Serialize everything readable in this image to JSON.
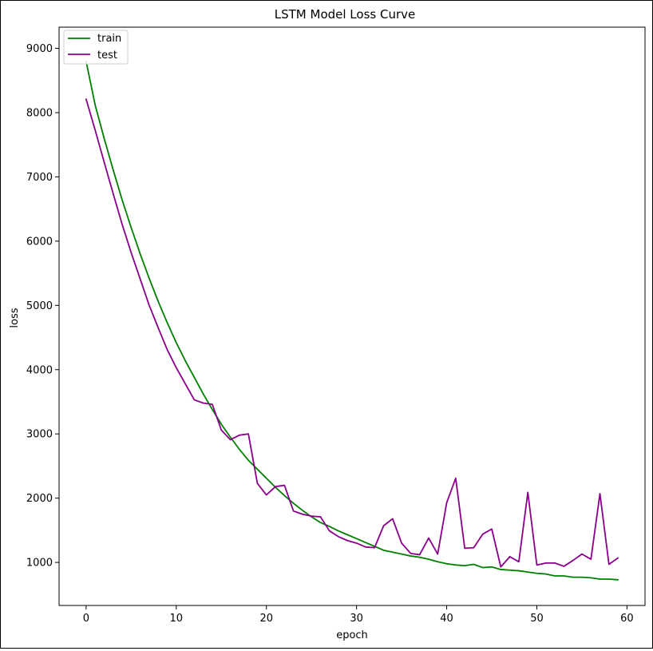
{
  "chart_data": {
    "type": "line",
    "title": "LSTM Model Loss Curve",
    "xlabel": "epoch",
    "ylabel": "loss",
    "xlim": [
      -3,
      62
    ],
    "ylim": [
      330,
      9330
    ],
    "xticks": [
      0,
      10,
      20,
      30,
      40,
      50,
      60
    ],
    "yticks": [
      1000,
      2000,
      3000,
      4000,
      5000,
      6000,
      7000,
      8000,
      9000
    ],
    "grid": false,
    "legend_position": "upper left",
    "series": [
      {
        "name": "train",
        "color": "#008000",
        "x": [
          0,
          1,
          2,
          3,
          4,
          5,
          6,
          7,
          8,
          9,
          10,
          11,
          12,
          13,
          14,
          15,
          16,
          17,
          18,
          19,
          20,
          21,
          22,
          23,
          24,
          25,
          26,
          27,
          28,
          29,
          30,
          31,
          32,
          33,
          34,
          35,
          36,
          37,
          38,
          39,
          40,
          41,
          42,
          43,
          44,
          45,
          46,
          47,
          48,
          49,
          50,
          51,
          52,
          53,
          54,
          55,
          56,
          57,
          58,
          59
        ],
        "values": [
          8800,
          8120,
          7600,
          7110,
          6640,
          6210,
          5800,
          5420,
          5060,
          4730,
          4420,
          4140,
          3880,
          3620,
          3380,
          3150,
          2950,
          2760,
          2590,
          2450,
          2310,
          2170,
          2040,
          1920,
          1810,
          1710,
          1620,
          1560,
          1490,
          1430,
          1370,
          1310,
          1250,
          1190,
          1160,
          1130,
          1100,
          1080,
          1050,
          1010,
          980,
          960,
          950,
          970,
          920,
          930,
          890,
          880,
          870,
          850,
          830,
          820,
          790,
          790,
          770,
          770,
          760,
          740,
          740,
          730
        ]
      },
      {
        "name": "test",
        "color": "#8b008b",
        "x": [
          0,
          1,
          2,
          3,
          4,
          5,
          6,
          7,
          8,
          9,
          10,
          11,
          12,
          13,
          14,
          15,
          16,
          17,
          18,
          19,
          20,
          21,
          22,
          23,
          24,
          25,
          26,
          27,
          28,
          29,
          30,
          31,
          32,
          33,
          34,
          35,
          36,
          37,
          38,
          39,
          40,
          41,
          42,
          43,
          44,
          45,
          46,
          47,
          48,
          49,
          50,
          51,
          52,
          53,
          54,
          55,
          56,
          57,
          58,
          59
        ],
        "values": [
          8210,
          7730,
          7230,
          6740,
          6260,
          5820,
          5410,
          5000,
          4650,
          4310,
          4030,
          3780,
          3530,
          3480,
          3460,
          3060,
          2910,
          2980,
          3000,
          2230,
          2050,
          2180,
          2200,
          1800,
          1750,
          1720,
          1710,
          1490,
          1400,
          1340,
          1300,
          1240,
          1230,
          1570,
          1680,
          1300,
          1140,
          1120,
          1380,
          1130,
          1930,
          2310,
          1220,
          1230,
          1440,
          1520,
          930,
          1090,
          1010,
          2090,
          960,
          990,
          990,
          940,
          1030,
          1130,
          1050,
          2070,
          970,
          1070
        ]
      }
    ]
  }
}
